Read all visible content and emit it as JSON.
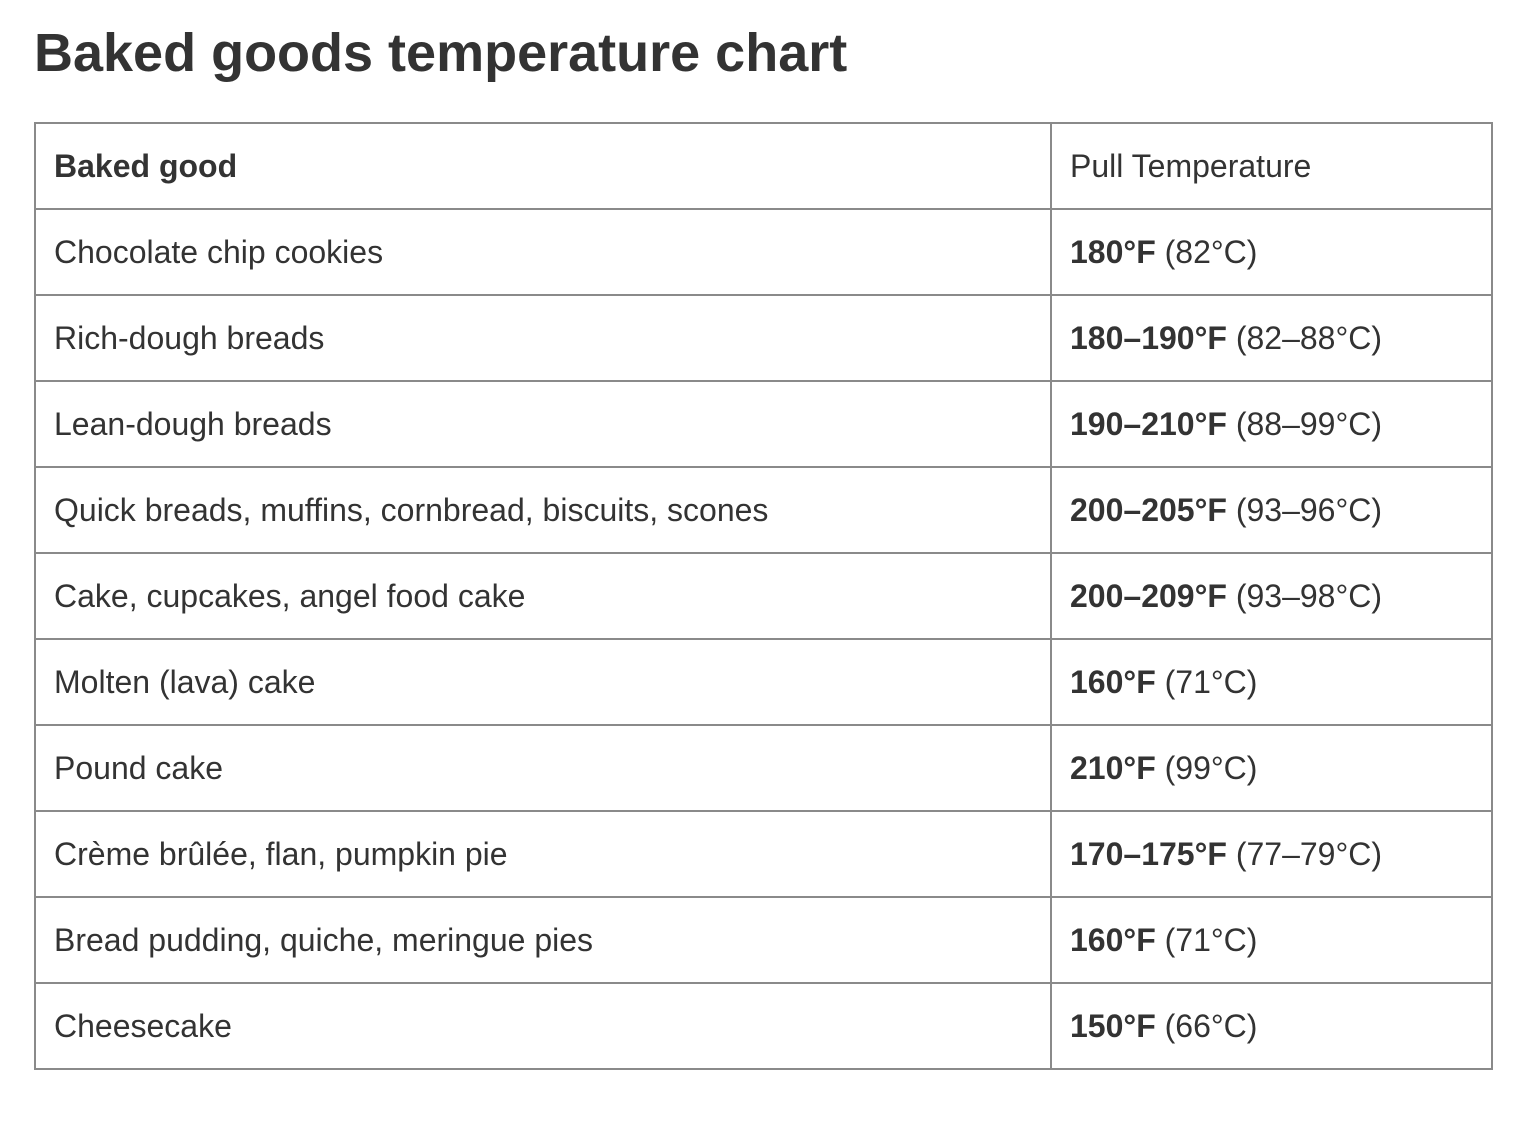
{
  "title": "Baked goods temperature chart",
  "table": {
    "header": [
      "Baked good",
      "Pull Temperature"
    ],
    "rows": [
      [
        "Chocolate chip cookies",
        "180°F",
        "(82°C)"
      ],
      [
        "Rich-dough breads",
        "180–190°F",
        "(82–88°C)"
      ],
      [
        "Lean-dough breads",
        "190–210°F",
        "(88–99°C)"
      ],
      [
        "Quick breads, muffins, cornbread, biscuits, scones",
        "200–205°F",
        "(93–96°C)"
      ],
      [
        "Cake, cupcakes, angel food cake",
        "200–209°F",
        "(93–98°C)"
      ],
      [
        "Molten (lava) cake",
        "160°F",
        "(71°C)"
      ],
      [
        "Pound cake",
        "210°F",
        "(99°C)"
      ],
      [
        "Crème brûlée, flan, pumpkin pie",
        "170–175°F",
        "(77–79°C)"
      ],
      [
        "Bread pudding, quiche, meringue pies",
        "160°F",
        "(71°C)"
      ],
      [
        "Cheesecake",
        "150°F",
        "(66°C)"
      ]
    ]
  }
}
